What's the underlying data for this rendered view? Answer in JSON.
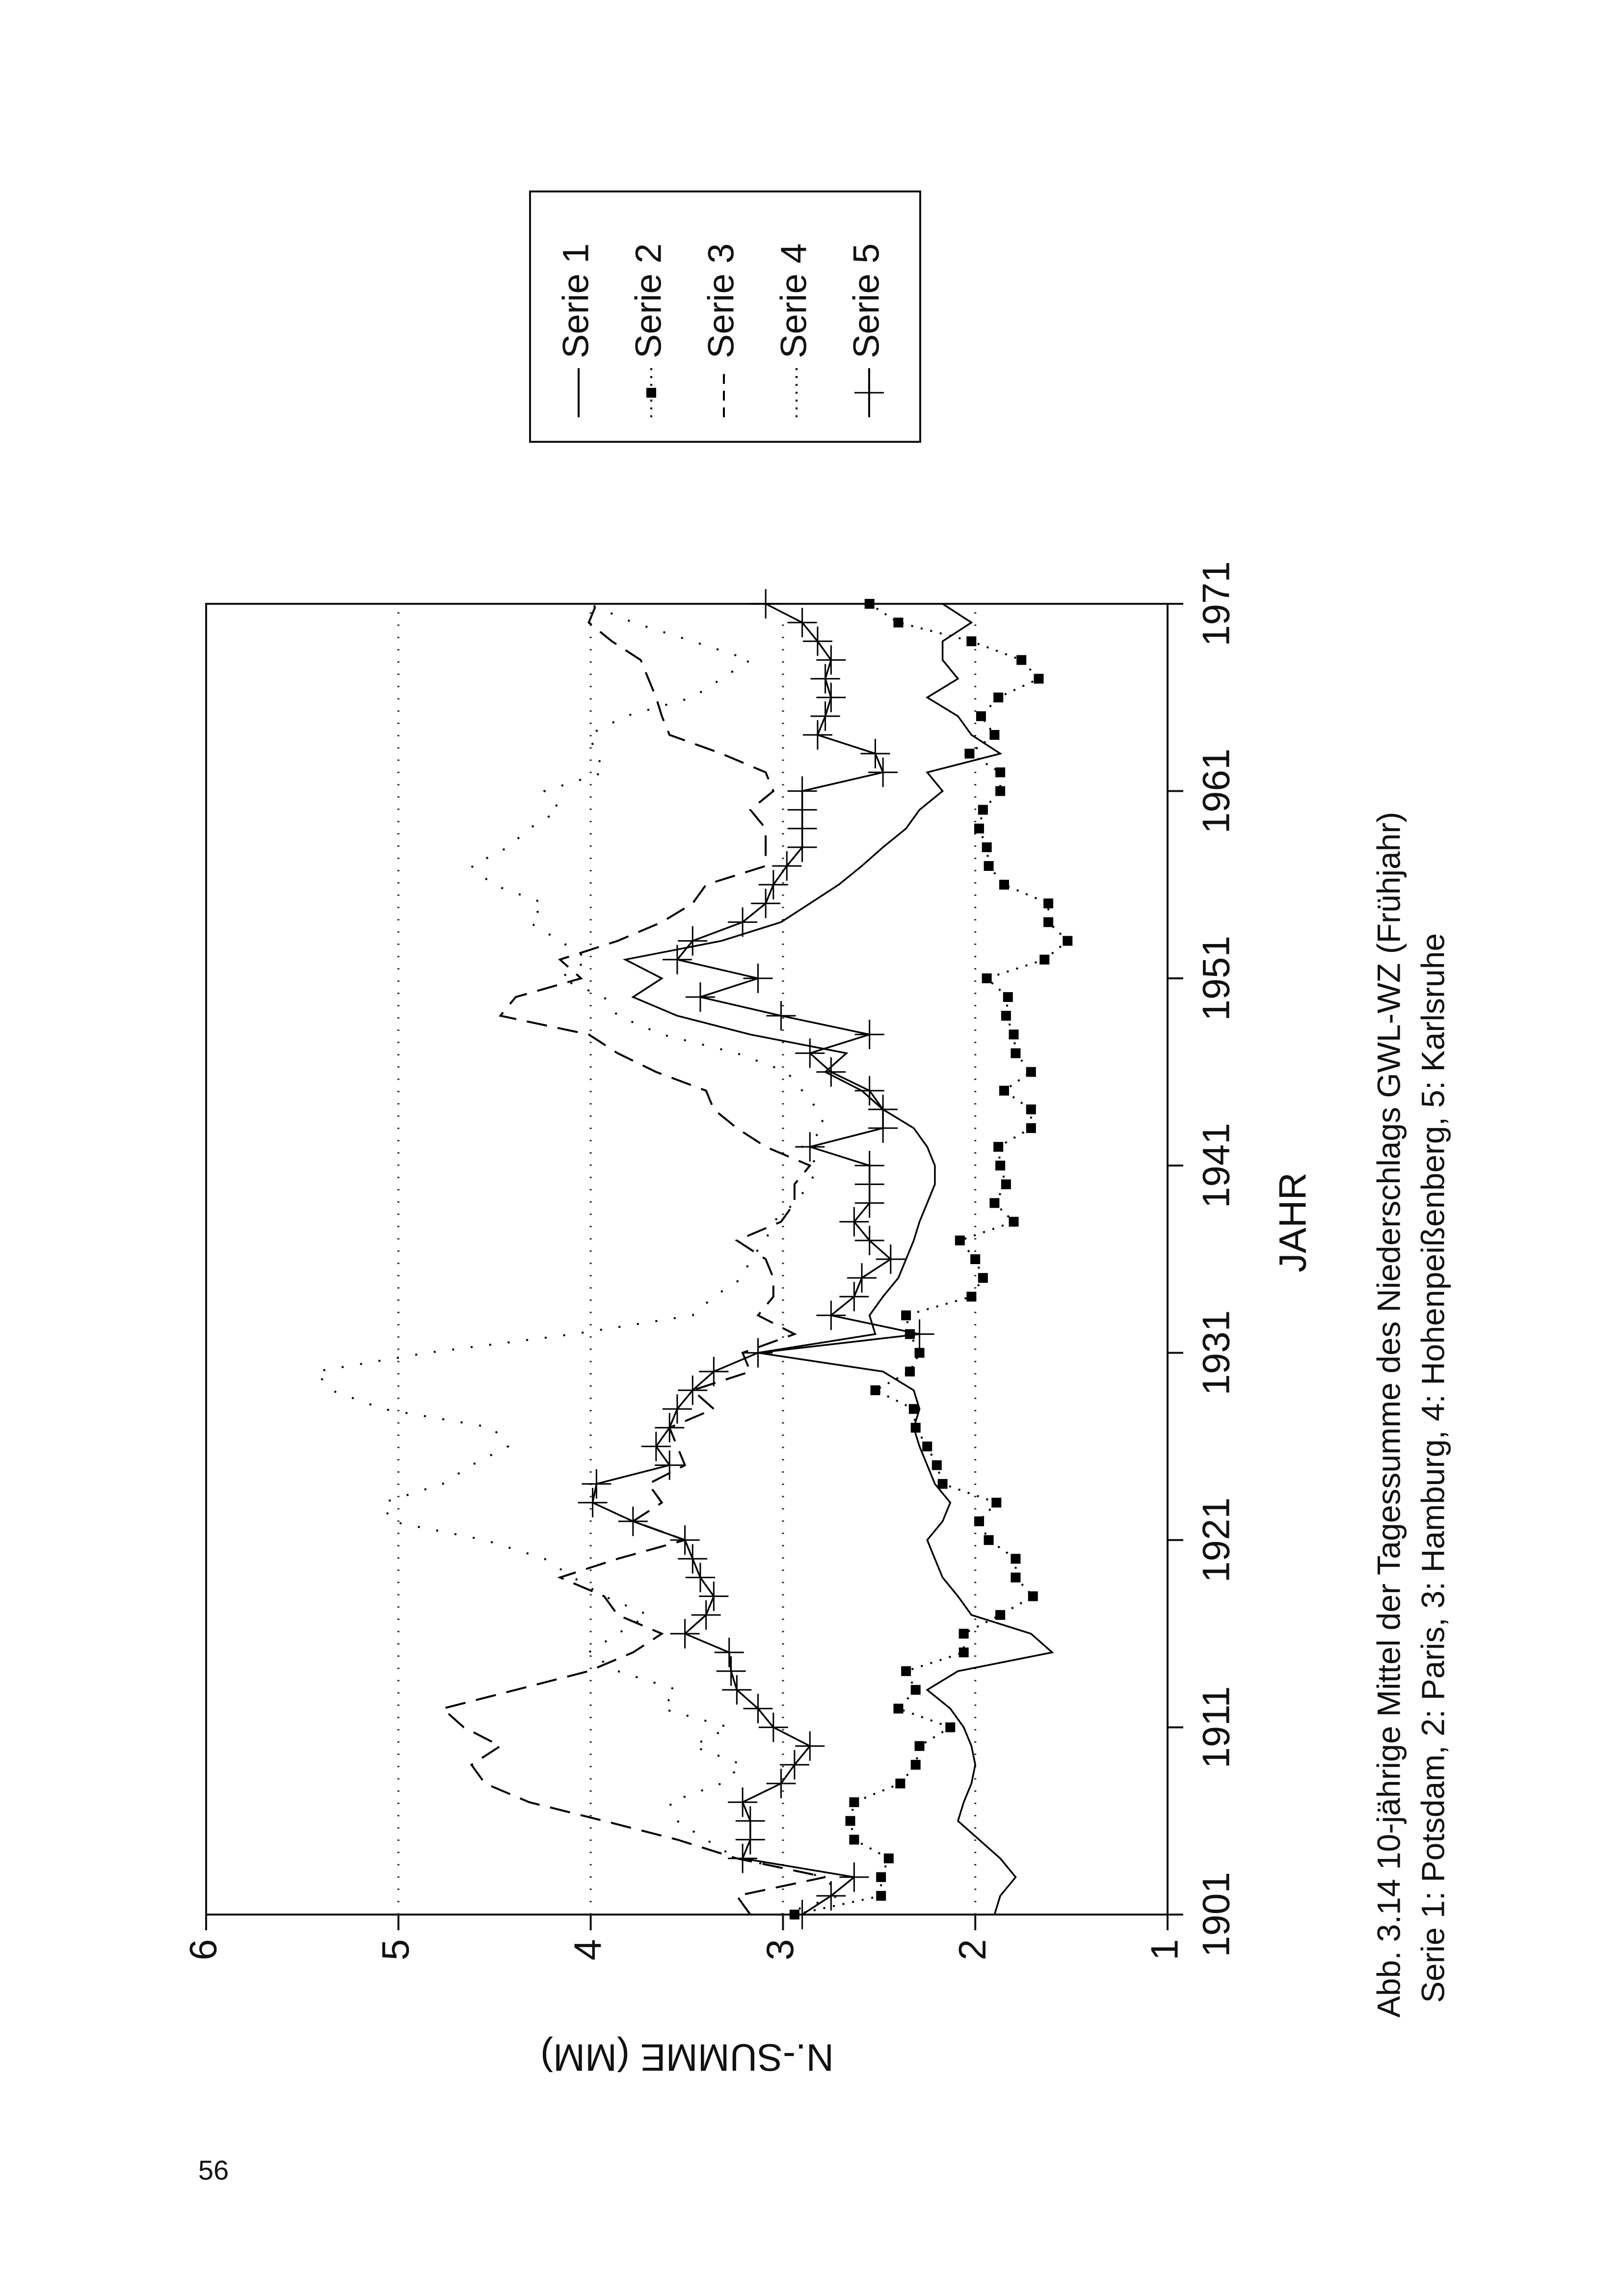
{
  "page_number": "56",
  "chart_data": {
    "type": "line",
    "x_label": "JAHR",
    "y_label": "N.-SUMME (MM)",
    "caption": [
      "Abb. 3.14 10-jährige Mittel der Tagessumme des Niederschlags GWL-WZ (Frühjahr)",
      "Serie 1: Potsdam, 2: Paris, 3: Hamburg, 4: Hohenpeißenberg, 5: Karlsruhe"
    ],
    "x": [
      1901,
      1902,
      1903,
      1904,
      1905,
      1906,
      1907,
      1908,
      1909,
      1910,
      1911,
      1912,
      1913,
      1914,
      1915,
      1916,
      1917,
      1918,
      1919,
      1920,
      1921,
      1922,
      1923,
      1924,
      1925,
      1926,
      1927,
      1928,
      1929,
      1930,
      1931,
      1932,
      1933,
      1934,
      1935,
      1936,
      1937,
      1938,
      1939,
      1940,
      1941,
      1942,
      1943,
      1944,
      1945,
      1946,
      1947,
      1948,
      1949,
      1950,
      1951,
      1952,
      1953,
      1954,
      1955,
      1956,
      1957,
      1958,
      1959,
      1960,
      1961,
      1962,
      1963,
      1964,
      1965,
      1966,
      1967,
      1968,
      1969,
      1970,
      1971
    ],
    "xlim": [
      1901,
      1971
    ],
    "xticks": [
      1901,
      1911,
      1921,
      1931,
      1941,
      1951,
      1961,
      1971
    ],
    "ylim": [
      1,
      6
    ],
    "yticks": [
      1,
      2,
      3,
      4,
      5,
      6
    ],
    "grid": true,
    "series": [
      {
        "name": "Serie 1",
        "color": "#000000",
        "line": "solid",
        "values": [
          1.9,
          1.87,
          1.79,
          1.87,
          1.98,
          2.09,
          2.06,
          2.02,
          2.0,
          2.02,
          2.06,
          2.13,
          2.25,
          2.09,
          1.6,
          1.71,
          2.02,
          2.09,
          2.17,
          2.21,
          2.25,
          2.17,
          2.13,
          2.21,
          2.25,
          2.29,
          2.32,
          2.29,
          2.32,
          2.48,
          3.13,
          2.52,
          2.55,
          2.48,
          2.4,
          2.36,
          2.32,
          2.29,
          2.25,
          2.21,
          2.21,
          2.25,
          2.32,
          2.48,
          2.59,
          2.78,
          2.67,
          3.17,
          3.55,
          3.78,
          3.63,
          3.82,
          3.32,
          3.01,
          2.86,
          2.71,
          2.59,
          2.48,
          2.36,
          2.29,
          2.17,
          2.25,
          1.87,
          2.02,
          2.09,
          2.25,
          2.09,
          2.17,
          2.17,
          2.02,
          2.17
        ]
      },
      {
        "name": "Serie 2",
        "color": "#000000",
        "line": "dotted",
        "marker": "square",
        "values": [
          2.94,
          2.49,
          2.49,
          2.45,
          2.63,
          2.65,
          2.63,
          2.39,
          2.31,
          2.29,
          2.13,
          2.4,
          2.31,
          2.36,
          2.06,
          2.06,
          1.87,
          1.7,
          1.79,
          1.79,
          1.93,
          1.98,
          1.89,
          2.17,
          2.2,
          2.25,
          2.31,
          2.32,
          2.52,
          2.34,
          2.29,
          2.34,
          2.36,
          2.02,
          1.96,
          2.0,
          2.08,
          1.8,
          1.9,
          1.84,
          1.87,
          1.88,
          1.71,
          1.71,
          1.85,
          1.71,
          1.79,
          1.8,
          1.84,
          1.83,
          1.94,
          1.64,
          1.52,
          1.62,
          1.62,
          1.85,
          1.93,
          1.94,
          1.98,
          1.96,
          1.87,
          1.87,
          2.03,
          1.9,
          1.97,
          1.88,
          1.67,
          1.76,
          2.02,
          2.4,
          2.55
        ]
      },
      {
        "name": "Serie 3",
        "color": "#000000",
        "line": "dashed",
        "values": [
          3.17,
          3.24,
          2.78,
          3.24,
          3.55,
          3.93,
          4.32,
          4.55,
          4.62,
          4.47,
          4.66,
          4.77,
          4.39,
          4.01,
          3.78,
          3.63,
          3.86,
          3.93,
          4.16,
          3.86,
          3.51,
          3.78,
          3.63,
          3.7,
          3.51,
          3.55,
          3.59,
          3.36,
          3.47,
          3.17,
          3.21,
          2.94,
          3.13,
          3.05,
          3.05,
          3.09,
          3.24,
          3.01,
          2.94,
          2.94,
          2.86,
          3.09,
          3.24,
          3.36,
          3.4,
          3.66,
          3.86,
          4.01,
          4.47,
          4.39,
          4.05,
          4.16,
          3.86,
          3.63,
          3.47,
          3.4,
          3.09,
          3.09,
          3.09,
          3.17,
          3.05,
          3.09,
          3.32,
          3.59,
          3.63,
          3.66,
          3.7,
          3.74,
          3.89,
          4.01,
          3.97
        ]
      },
      {
        "name": "Serie 4",
        "color": "#000000",
        "line": "sparse-dotted",
        "values": [
          3.01,
          2.71,
          2.78,
          3.24,
          3.4,
          3.55,
          3.59,
          3.32,
          3.21,
          3.47,
          3.28,
          3.63,
          3.55,
          3.86,
          4.01,
          3.86,
          3.7,
          3.93,
          4.09,
          4.24,
          4.55,
          5.04,
          5.08,
          4.77,
          4.62,
          4.43,
          4.51,
          5.08,
          5.35,
          5.43,
          4.85,
          4.09,
          3.47,
          3.36,
          3.21,
          3.17,
          3.09,
          3.05,
          2.94,
          2.86,
          2.82,
          2.9,
          2.78,
          2.82,
          2.9,
          2.98,
          3.24,
          3.63,
          3.86,
          3.93,
          4.16,
          4.01,
          4.16,
          4.32,
          4.24,
          4.51,
          4.62,
          4.43,
          4.32,
          4.16,
          4.24,
          3.93,
          3.97,
          4.01,
          3.82,
          3.47,
          3.32,
          3.17,
          3.47,
          3.78,
          4.01
        ]
      },
      {
        "name": "Serie 5",
        "color": "#000000",
        "line": "solid",
        "marker": "plus",
        "values": [
          2.9,
          2.75,
          2.63,
          3.21,
          3.17,
          3.17,
          3.21,
          3.01,
          2.94,
          2.86,
          3.05,
          3.13,
          3.24,
          3.27,
          3.28,
          3.51,
          3.4,
          3.36,
          3.43,
          3.47,
          3.51,
          3.78,
          3.99,
          3.97,
          3.59,
          3.66,
          3.59,
          3.55,
          3.47,
          3.36,
          3.13,
          2.29,
          2.75,
          2.63,
          2.59,
          2.44,
          2.55,
          2.63,
          2.55,
          2.55,
          2.55,
          2.86,
          2.48,
          2.48,
          2.55,
          2.75,
          2.86,
          2.55,
          3.01,
          3.43,
          3.13,
          3.55,
          3.47,
          3.21,
          3.09,
          3.05,
          2.98,
          2.9,
          2.9,
          2.9,
          2.9,
          2.48,
          2.52,
          2.82,
          2.78,
          2.75,
          2.78,
          2.75,
          2.82,
          2.9,
          3.09
        ]
      }
    ]
  }
}
